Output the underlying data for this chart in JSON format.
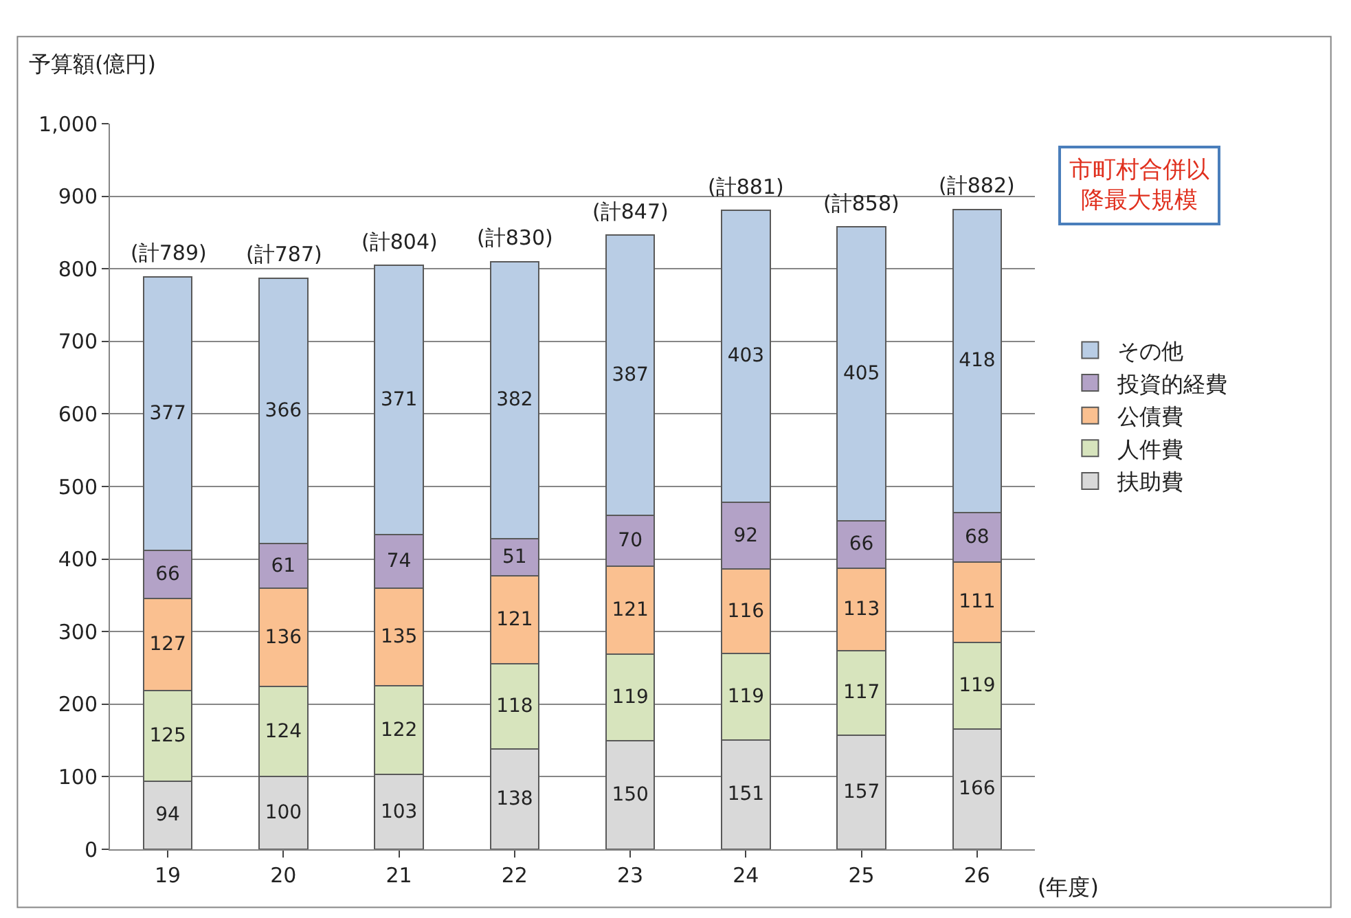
{
  "chart_data": {
    "type": "bar",
    "stacked": true,
    "ylabel": "予算額(億円)",
    "xlabel": "(年度)",
    "categories": [
      "19",
      "20",
      "21",
      "22",
      "23",
      "24",
      "25",
      "26"
    ],
    "series": [
      {
        "name": "扶助費",
        "color": "#d9d9d9",
        "values": [
          94,
          100,
          103,
          138,
          150,
          151,
          157,
          166
        ]
      },
      {
        "name": "人件費",
        "color": "#d7e4bd",
        "values": [
          125,
          124,
          122,
          118,
          119,
          119,
          117,
          119
        ]
      },
      {
        "name": "公債費",
        "color": "#fac090",
        "values": [
          127,
          136,
          135,
          121,
          121,
          116,
          113,
          111
        ]
      },
      {
        "name": "投資的経費",
        "color": "#b3a2c7",
        "values": [
          66,
          61,
          74,
          51,
          70,
          92,
          66,
          68
        ]
      },
      {
        "name": "その他",
        "color": "#b9cde5",
        "values": [
          377,
          366,
          371,
          382,
          387,
          403,
          405,
          418
        ]
      }
    ],
    "totals": [
      "(計789)",
      "(計787)",
      "(計804)",
      "(計830)",
      "(計847)",
      "(計881)",
      "(計858)",
      "(計882)"
    ],
    "annotations": [
      "市町村合併以降最大規模"
    ],
    "data_labels": true,
    "ylim": [
      0,
      1000
    ],
    "yticks": [
      0,
      100,
      200,
      300,
      400,
      500,
      600,
      700,
      800,
      900,
      {
        "value": 1000,
        "label": "1,000"
      }
    ],
    "grid": "y",
    "legend": "right"
  }
}
